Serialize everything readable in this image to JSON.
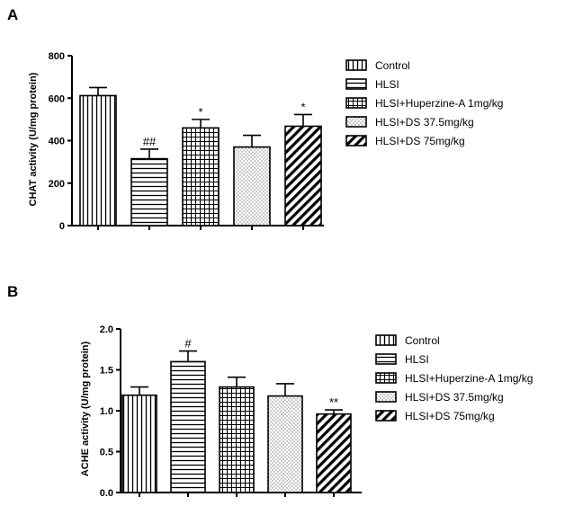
{
  "chart_data": [
    {
      "type": "bar",
      "panel": "A",
      "ylabel": "CHAT activity (U/mg protein)",
      "ylim": [
        0,
        800
      ],
      "yticks": [
        0,
        200,
        400,
        600,
        800
      ],
      "categories": [
        "Control",
        "HLSI",
        "HLSI+Huperzine-A 1mg/kg",
        "HLSI+DS 37.5mg/kg",
        "HLSI+DS 75mg/kg"
      ],
      "values": [
        612,
        315,
        460,
        370,
        468
      ],
      "errors": [
        38,
        45,
        40,
        55,
        55
      ],
      "significance": [
        "",
        "##",
        "*",
        "",
        "*"
      ],
      "legend": [
        "Control",
        "HLSI",
        "HLSI+Huperzine-A 1mg/kg",
        "HLSI+DS 37.5mg/kg",
        "HLSI+DS 75mg/kg"
      ]
    },
    {
      "type": "bar",
      "panel": "B",
      "ylabel": "ACHE activity (U/mg protein)",
      "ylim": [
        0,
        2.0
      ],
      "yticks": [
        "0.0",
        "0.5",
        "1.0",
        "1.5",
        "2.0"
      ],
      "categories": [
        "Control",
        "HLSI",
        "HLSI+Huperzine-A 1mg/kg",
        "HLSI+DS 37.5mg/kg",
        "HLSI+DS 75mg/kg"
      ],
      "values": [
        1.19,
        1.6,
        1.29,
        1.18,
        0.96
      ],
      "errors": [
        0.1,
        0.13,
        0.12,
        0.15,
        0.05
      ],
      "significance": [
        "",
        "#",
        "",
        "",
        "**"
      ],
      "legend": [
        "Control",
        "HLSI",
        "HLSI+Huperzine-A 1mg/kg",
        "HLSI+DS 37.5mg/kg",
        "HLSI+DS 75mg/kg"
      ]
    }
  ]
}
